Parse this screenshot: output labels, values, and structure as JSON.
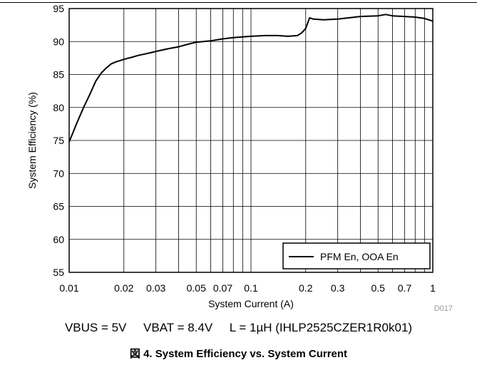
{
  "chart_data": {
    "type": "line",
    "xscale": "log",
    "xlabel": "System Current (A)",
    "ylabel": "System Efficiency (%)",
    "xlim": [
      0.01,
      1
    ],
    "ylim": [
      55,
      95
    ],
    "grid": true,
    "x_tick_labels": [
      "0.01",
      "0.02",
      "0.03",
      "0.05",
      "0.07",
      "0.1",
      "0.2",
      "0.3",
      "0.5",
      "0.7",
      "1"
    ],
    "y_tick_labels": [
      "55",
      "60",
      "65",
      "70",
      "75",
      "80",
      "85",
      "90",
      "95"
    ],
    "legend_position": "bottom-right",
    "series": [
      {
        "name": "PFM En, OOA En",
        "color": "#000000",
        "x": [
          0.01,
          0.0105,
          0.011,
          0.012,
          0.013,
          0.014,
          0.015,
          0.016,
          0.017,
          0.018,
          0.019,
          0.02,
          0.022,
          0.024,
          0.026,
          0.028,
          0.03,
          0.035,
          0.04,
          0.045,
          0.05,
          0.06,
          0.07,
          0.08,
          0.1,
          0.12,
          0.14,
          0.16,
          0.18,
          0.19,
          0.2,
          0.21,
          0.22,
          0.25,
          0.3,
          0.4,
          0.5,
          0.55,
          0.6,
          0.7,
          0.8,
          0.9,
          1.0
        ],
        "y": [
          74.8,
          76.2,
          77.6,
          80.0,
          82.0,
          84.0,
          85.2,
          86.0,
          86.6,
          86.9,
          87.1,
          87.3,
          87.6,
          87.9,
          88.1,
          88.3,
          88.5,
          88.9,
          89.2,
          89.6,
          89.9,
          90.1,
          90.4,
          90.6,
          90.8,
          90.9,
          90.9,
          90.8,
          90.9,
          91.3,
          92.0,
          93.6,
          93.4,
          93.3,
          93.4,
          93.8,
          93.9,
          94.1,
          93.9,
          93.8,
          93.7,
          93.5,
          93.1
        ]
      }
    ]
  },
  "watermark": "D017",
  "conditions_text": "VBUS = 5V     VBAT = 8.4V     L = 1µH (IHLP2525CZER1R0k01)",
  "figure_title": "図 4. System Efficiency vs. System Current"
}
